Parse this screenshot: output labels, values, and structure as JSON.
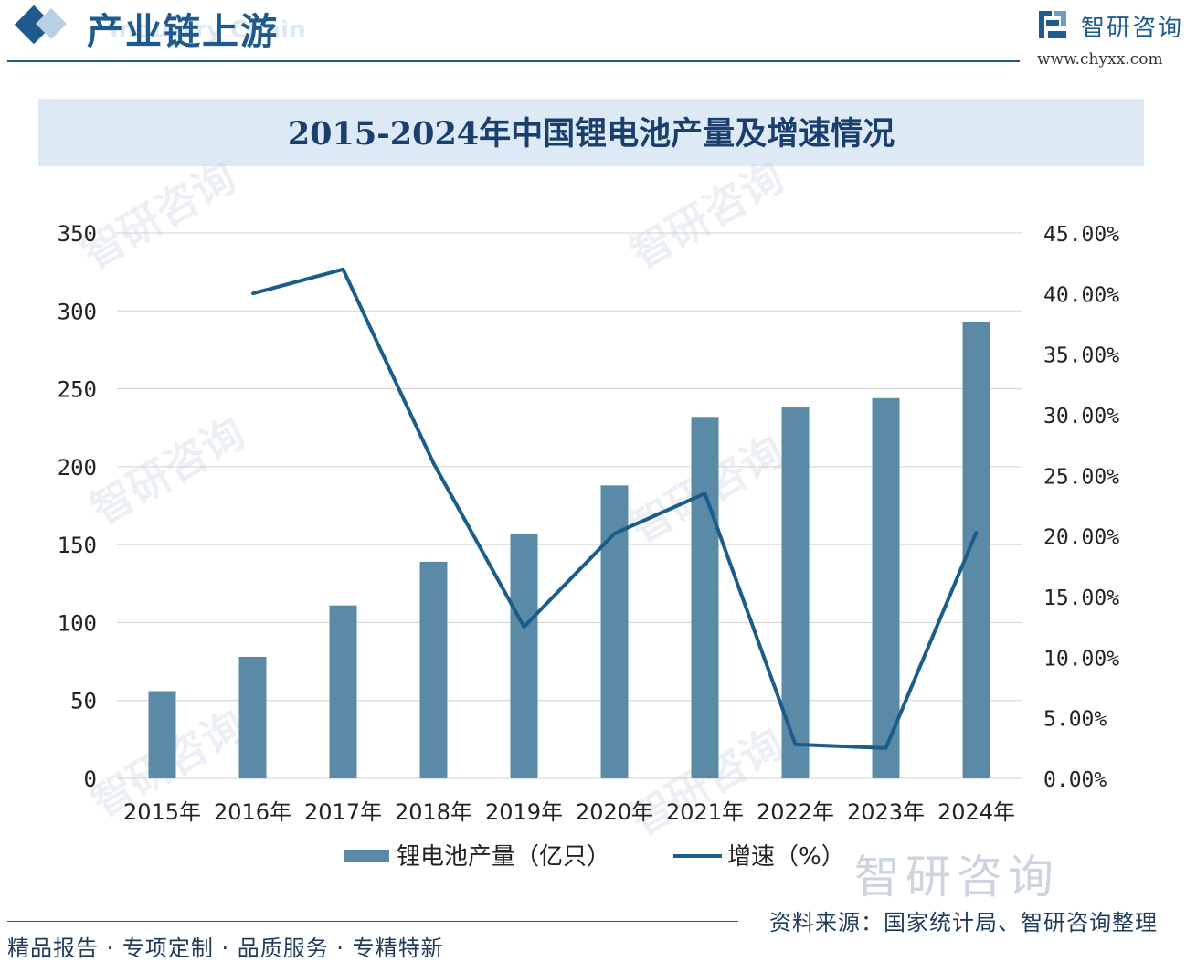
{
  "header": {
    "section_title": "产业链上游",
    "section_subtitle": "Industry Chain",
    "brand_name": "智研咨询",
    "brand_url": "www.chyxx.com"
  },
  "colors": {
    "accent": "#1f5a8f",
    "bar": "#5b8aa6",
    "line": "#1a5d8a",
    "title_bg": "#dde9f5",
    "grid": "#d0d0d0"
  },
  "chart_data": {
    "type": "bar",
    "title": "2015-2024年中国锂电池产量及增速情况",
    "categories": [
      "2015年",
      "2016年",
      "2017年",
      "2018年",
      "2019年",
      "2020年",
      "2021年",
      "2022年",
      "2023年",
      "2024年"
    ],
    "series": [
      {
        "name": "锂电池产量（亿只）",
        "type": "bar",
        "axis": "left",
        "values": [
          56,
          78,
          111,
          139,
          157,
          188,
          232,
          238,
          244,
          293
        ]
      },
      {
        "name": "增速（%）",
        "type": "line",
        "axis": "right",
        "values": [
          null,
          40.0,
          42.0,
          26.0,
          12.5,
          20.2,
          23.5,
          2.8,
          2.5,
          20.3
        ]
      }
    ],
    "left_ylim": [
      0,
      350
    ],
    "left_ticks": [
      "0",
      "50",
      "100",
      "150",
      "200",
      "250",
      "300",
      "350"
    ],
    "right_ylim": [
      0,
      45
    ],
    "right_ticks": [
      "0.00%",
      "5.00%",
      "10.00%",
      "15.00%",
      "20.00%",
      "25.00%",
      "30.00%",
      "35.00%",
      "40.00%",
      "45.00%"
    ],
    "grid": true,
    "legend_position": "bottom"
  },
  "footer": {
    "left": "精品报告 · 专项定制 · 品质服务 · 专精特新",
    "source": "资料来源：国家统计局、智研咨询整理"
  }
}
